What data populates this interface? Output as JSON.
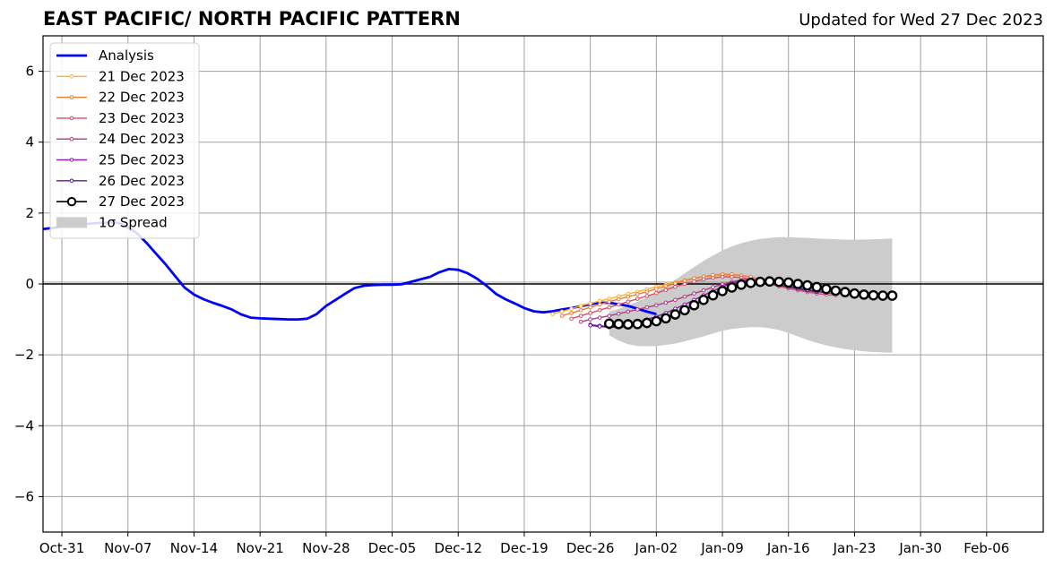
{
  "header": {
    "title": "EAST PACIFIC/ NORTH PACIFIC PATTERN",
    "updated": "Updated for Wed 27 Dec 2023"
  },
  "chart_data": {
    "type": "line",
    "title": "EAST PACIFIC/ NORTH PACIFIC PATTERN",
    "subtitle": "Updated for Wed 27 Dec 2023",
    "xlabel": "",
    "ylabel": "",
    "x_axis": "date",
    "xlim": [
      "2023-10-29",
      "2024-02-12"
    ],
    "ylim": [
      -7,
      7
    ],
    "yticks": [
      -6,
      -4,
      -2,
      0,
      2,
      4,
      6
    ],
    "ytick_labels": [
      "−6",
      "−4",
      "−2",
      "0",
      "2",
      "4",
      "6"
    ],
    "xticks": [
      "2023-10-31",
      "2023-11-07",
      "2023-11-14",
      "2023-11-21",
      "2023-11-28",
      "2023-12-05",
      "2023-12-12",
      "2023-12-19",
      "2023-12-26",
      "2024-01-02",
      "2024-01-09",
      "2024-01-16",
      "2024-01-23",
      "2024-01-30",
      "2024-02-06"
    ],
    "xtick_labels": [
      "Oct-31",
      "Nov-07",
      "Nov-14",
      "Nov-21",
      "Nov-28",
      "Dec-05",
      "Dec-12",
      "Dec-19",
      "Dec-26",
      "Jan-02",
      "Jan-09",
      "Jan-16",
      "Jan-23",
      "Jan-30",
      "Feb-06"
    ],
    "grid": true,
    "zero_line": true,
    "legend_position": "top-left",
    "analysis": {
      "name": "Analysis",
      "color": "#0000ff",
      "start": "2023-10-29",
      "values": [
        1.55,
        1.58,
        1.62,
        1.65,
        1.68,
        1.7,
        1.72,
        1.73,
        1.72,
        1.6,
        1.42,
        1.15,
        0.85,
        0.55,
        0.22,
        -0.1,
        -0.3,
        -0.43,
        -0.53,
        -0.62,
        -0.72,
        -0.86,
        -0.95,
        -0.97,
        -0.98,
        -0.99,
        -1.0,
        -1.0,
        -0.98,
        -0.85,
        -0.62,
        -0.45,
        -0.28,
        -0.12,
        -0.05,
        -0.03,
        -0.02,
        -0.02,
        -0.01,
        0.06,
        0.13,
        0.2,
        0.33,
        0.42,
        0.4,
        0.3,
        0.15,
        -0.05,
        -0.28,
        -0.43,
        -0.55,
        -0.68,
        -0.77,
        -0.8,
        -0.77,
        -0.72,
        -0.68,
        -0.63,
        -0.57,
        -0.53,
        -0.53,
        -0.57,
        -0.62,
        -0.7,
        -0.78,
        -0.85
      ]
    },
    "forecasts": [
      {
        "name": "21 Dec 2023",
        "color": "#ffb030",
        "start": "2023-12-22",
        "values": [
          -0.85,
          -0.78,
          -0.7,
          -0.62,
          -0.55,
          -0.48,
          -0.42,
          -0.35,
          -0.28,
          -0.22,
          -0.15,
          -0.08,
          -0.02,
          0.05,
          0.11,
          0.16,
          0.2,
          0.23,
          0.24,
          0.22,
          0.18,
          0.12,
          0.06
        ]
      },
      {
        "name": "22 Dec 2023",
        "color": "#f07a3a",
        "start": "2023-12-23",
        "values": [
          -0.9,
          -0.82,
          -0.74,
          -0.66,
          -0.58,
          -0.5,
          -0.43,
          -0.36,
          -0.29,
          -0.22,
          -0.14,
          -0.06,
          0.02,
          0.09,
          0.16,
          0.21,
          0.25,
          0.27,
          0.27,
          0.24,
          0.2,
          0.14,
          0.08,
          0.02,
          -0.04,
          -0.1,
          -0.15,
          -0.2
        ]
      },
      {
        "name": "23 Dec 2023",
        "color": "#d55068",
        "start": "2023-12-24",
        "values": [
          -0.98,
          -0.9,
          -0.82,
          -0.74,
          -0.66,
          -0.58,
          -0.5,
          -0.42,
          -0.34,
          -0.26,
          -0.17,
          -0.08,
          0.0,
          0.07,
          0.13,
          0.17,
          0.2,
          0.2,
          0.18,
          0.13,
          0.07,
          0.0,
          -0.07,
          -0.13,
          -0.18,
          -0.23,
          -0.27,
          -0.3,
          -0.32
        ]
      },
      {
        "name": "24 Dec 2023",
        "color": "#b03a88",
        "start": "2023-12-25",
        "values": [
          -1.07,
          -1.0,
          -0.95,
          -0.9,
          -0.84,
          -0.78,
          -0.72,
          -0.66,
          -0.6,
          -0.53,
          -0.45,
          -0.36,
          -0.27,
          -0.18,
          -0.09,
          -0.01,
          0.06,
          0.11,
          0.13,
          0.11,
          0.07,
          0.02,
          -0.04,
          -0.1,
          -0.16,
          -0.21,
          -0.25,
          -0.28
        ]
      },
      {
        "name": "25 Dec 2023",
        "color": "#8a20a8",
        "start": "2023-12-26",
        "values": [
          -1.15,
          -1.18,
          -1.2,
          -1.18,
          -1.14,
          -1.08,
          -1.0,
          -0.92,
          -0.82,
          -0.7,
          -0.58,
          -0.45,
          -0.32,
          -0.2,
          -0.08,
          0.02,
          0.08,
          0.1,
          0.08,
          0.03,
          -0.03,
          -0.09,
          -0.14,
          -0.19,
          -0.23
        ]
      },
      {
        "name": "26 Dec 2023",
        "color": "#5a1a9a",
        "start": "2023-12-26",
        "values": [
          -1.17,
          -1.2,
          -1.22,
          -1.22,
          -1.2,
          -1.15,
          -1.1,
          -1.03,
          -0.95,
          -0.85,
          -0.72,
          -0.58,
          -0.44,
          -0.3,
          -0.17,
          -0.06,
          0.02,
          0.05,
          0.05,
          0.02,
          -0.03,
          -0.08,
          -0.13,
          -0.17,
          -0.21,
          -0.25
        ]
      }
    ],
    "latest": {
      "name": "27 Dec 2023",
      "color": "#000000",
      "start": "2023-12-28",
      "values": [
        -1.12,
        -1.13,
        -1.14,
        -1.13,
        -1.1,
        -1.05,
        -0.97,
        -0.86,
        -0.74,
        -0.6,
        -0.45,
        -0.32,
        -0.2,
        -0.1,
        -0.02,
        0.03,
        0.06,
        0.07,
        0.06,
        0.04,
        0.0,
        -0.04,
        -0.09,
        -0.14,
        -0.19,
        -0.23,
        -0.27,
        -0.3,
        -0.32,
        -0.33,
        -0.33
      ]
    },
    "spread": {
      "name": "1σ Spread",
      "color": "#cccccc",
      "start": "2023-12-28",
      "lower": [
        -1.45,
        -1.6,
        -1.7,
        -1.75,
        -1.76,
        -1.75,
        -1.72,
        -1.68,
        -1.62,
        -1.55,
        -1.48,
        -1.4,
        -1.32,
        -1.27,
        -1.24,
        -1.22,
        -1.22,
        -1.25,
        -1.3,
        -1.38,
        -1.48,
        -1.58,
        -1.66,
        -1.73,
        -1.79,
        -1.84,
        -1.87,
        -1.9,
        -1.92,
        -1.93,
        -1.94
      ],
      "upper": [
        -0.78,
        -0.7,
        -0.6,
        -0.5,
        -0.38,
        -0.22,
        -0.05,
        0.12,
        0.3,
        0.48,
        0.65,
        0.8,
        0.94,
        1.06,
        1.15,
        1.22,
        1.27,
        1.3,
        1.32,
        1.32,
        1.31,
        1.3,
        1.28,
        1.27,
        1.26,
        1.25,
        1.25,
        1.25,
        1.26,
        1.27,
        1.28
      ]
    }
  }
}
